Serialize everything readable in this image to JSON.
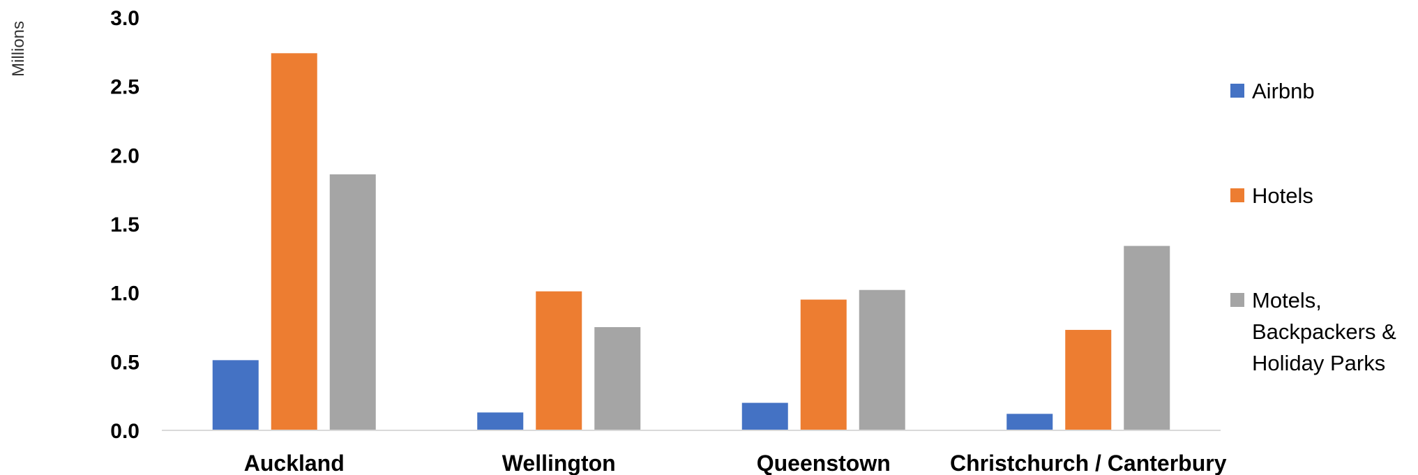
{
  "chart_data": {
    "type": "bar",
    "title": "",
    "xlabel": "",
    "ylabel": "Millions",
    "ylim": [
      0,
      3.0
    ],
    "yticks": [
      0.0,
      0.5,
      1.0,
      1.5,
      2.0,
      2.5,
      3.0
    ],
    "ytick_labels": [
      "0.0",
      "0.5",
      "1.0",
      "1.5",
      "2.0",
      "2.5",
      "3.0"
    ],
    "grid": false,
    "legend_position": "right",
    "categories": [
      "Auckland",
      "Wellington",
      "Queenstown",
      "Christchurch / Canterbury"
    ],
    "series": [
      {
        "name": "Airbnb",
        "color": "#4472C4",
        "values": [
          0.51,
          0.13,
          0.2,
          0.12
        ]
      },
      {
        "name": "Hotels",
        "color": "#ED7D31",
        "values": [
          2.74,
          1.01,
          0.95,
          0.73
        ]
      },
      {
        "name": "Motels, Backpackers & Holiday Parks",
        "legend_lines": [
          "Motels,",
          "Backpackers &",
          "Holiday Parks"
        ],
        "color": "#A5A5A5",
        "values": [
          1.86,
          0.75,
          1.02,
          1.34
        ]
      }
    ]
  }
}
